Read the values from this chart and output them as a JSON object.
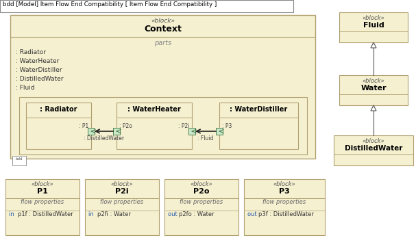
{
  "bg": "#ffffff",
  "fill": "#f5f0d0",
  "edge": "#b0a070",
  "title": "bdd [Model] Item Flow End Compatibility [ Item Flow End Compatibility ]",
  "parts_list": [
    ": Radiator",
    ": WaterHeater",
    ": WaterDistiller",
    ": DistilledWater",
    ": Fluid"
  ],
  "port_fill": "#c8e8c8",
  "port_edge": "#508050",
  "arrow_color": "#222222",
  "gen_color": "#555555",
  "keyword_color": "#2255aa",
  "text_color": "#333333",
  "gray_color": "#666666"
}
